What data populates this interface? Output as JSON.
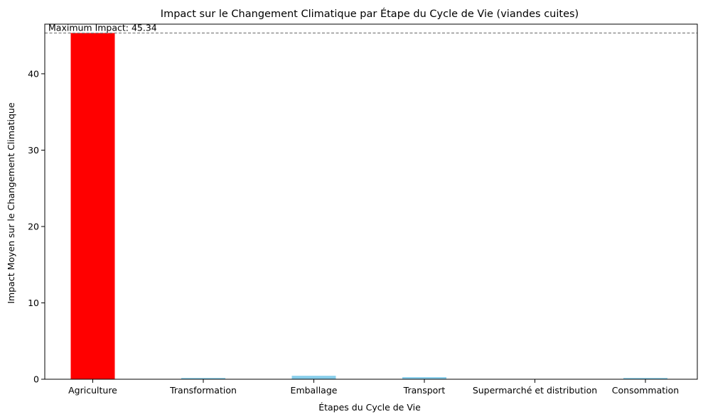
{
  "chart_data": {
    "type": "bar",
    "title": "Impact sur le Changement Climatique par Étape du Cycle de Vie (viandes cuites)",
    "xlabel": "Étapes du Cycle de Vie",
    "ylabel": "Impact Moyen sur le Changement Climatique",
    "categories": [
      "Agriculture",
      "Transformation",
      "Emballage",
      "Transport",
      "Supermarché et distribution",
      "Consommation"
    ],
    "values": [
      45.34,
      0.17,
      0.45,
      0.27,
      0.04,
      0.17
    ],
    "ylim": [
      0,
      46.5
    ],
    "yticks": [
      0,
      10,
      20,
      30,
      40
    ],
    "colors": {
      "highlight": "#ff0000",
      "default": "#87ceeb",
      "reference_line": "#808080"
    },
    "reference_line": {
      "value": 45.34,
      "style": "dashed"
    },
    "annotation": "Maximum Impact: 45.34",
    "grid": false
  }
}
